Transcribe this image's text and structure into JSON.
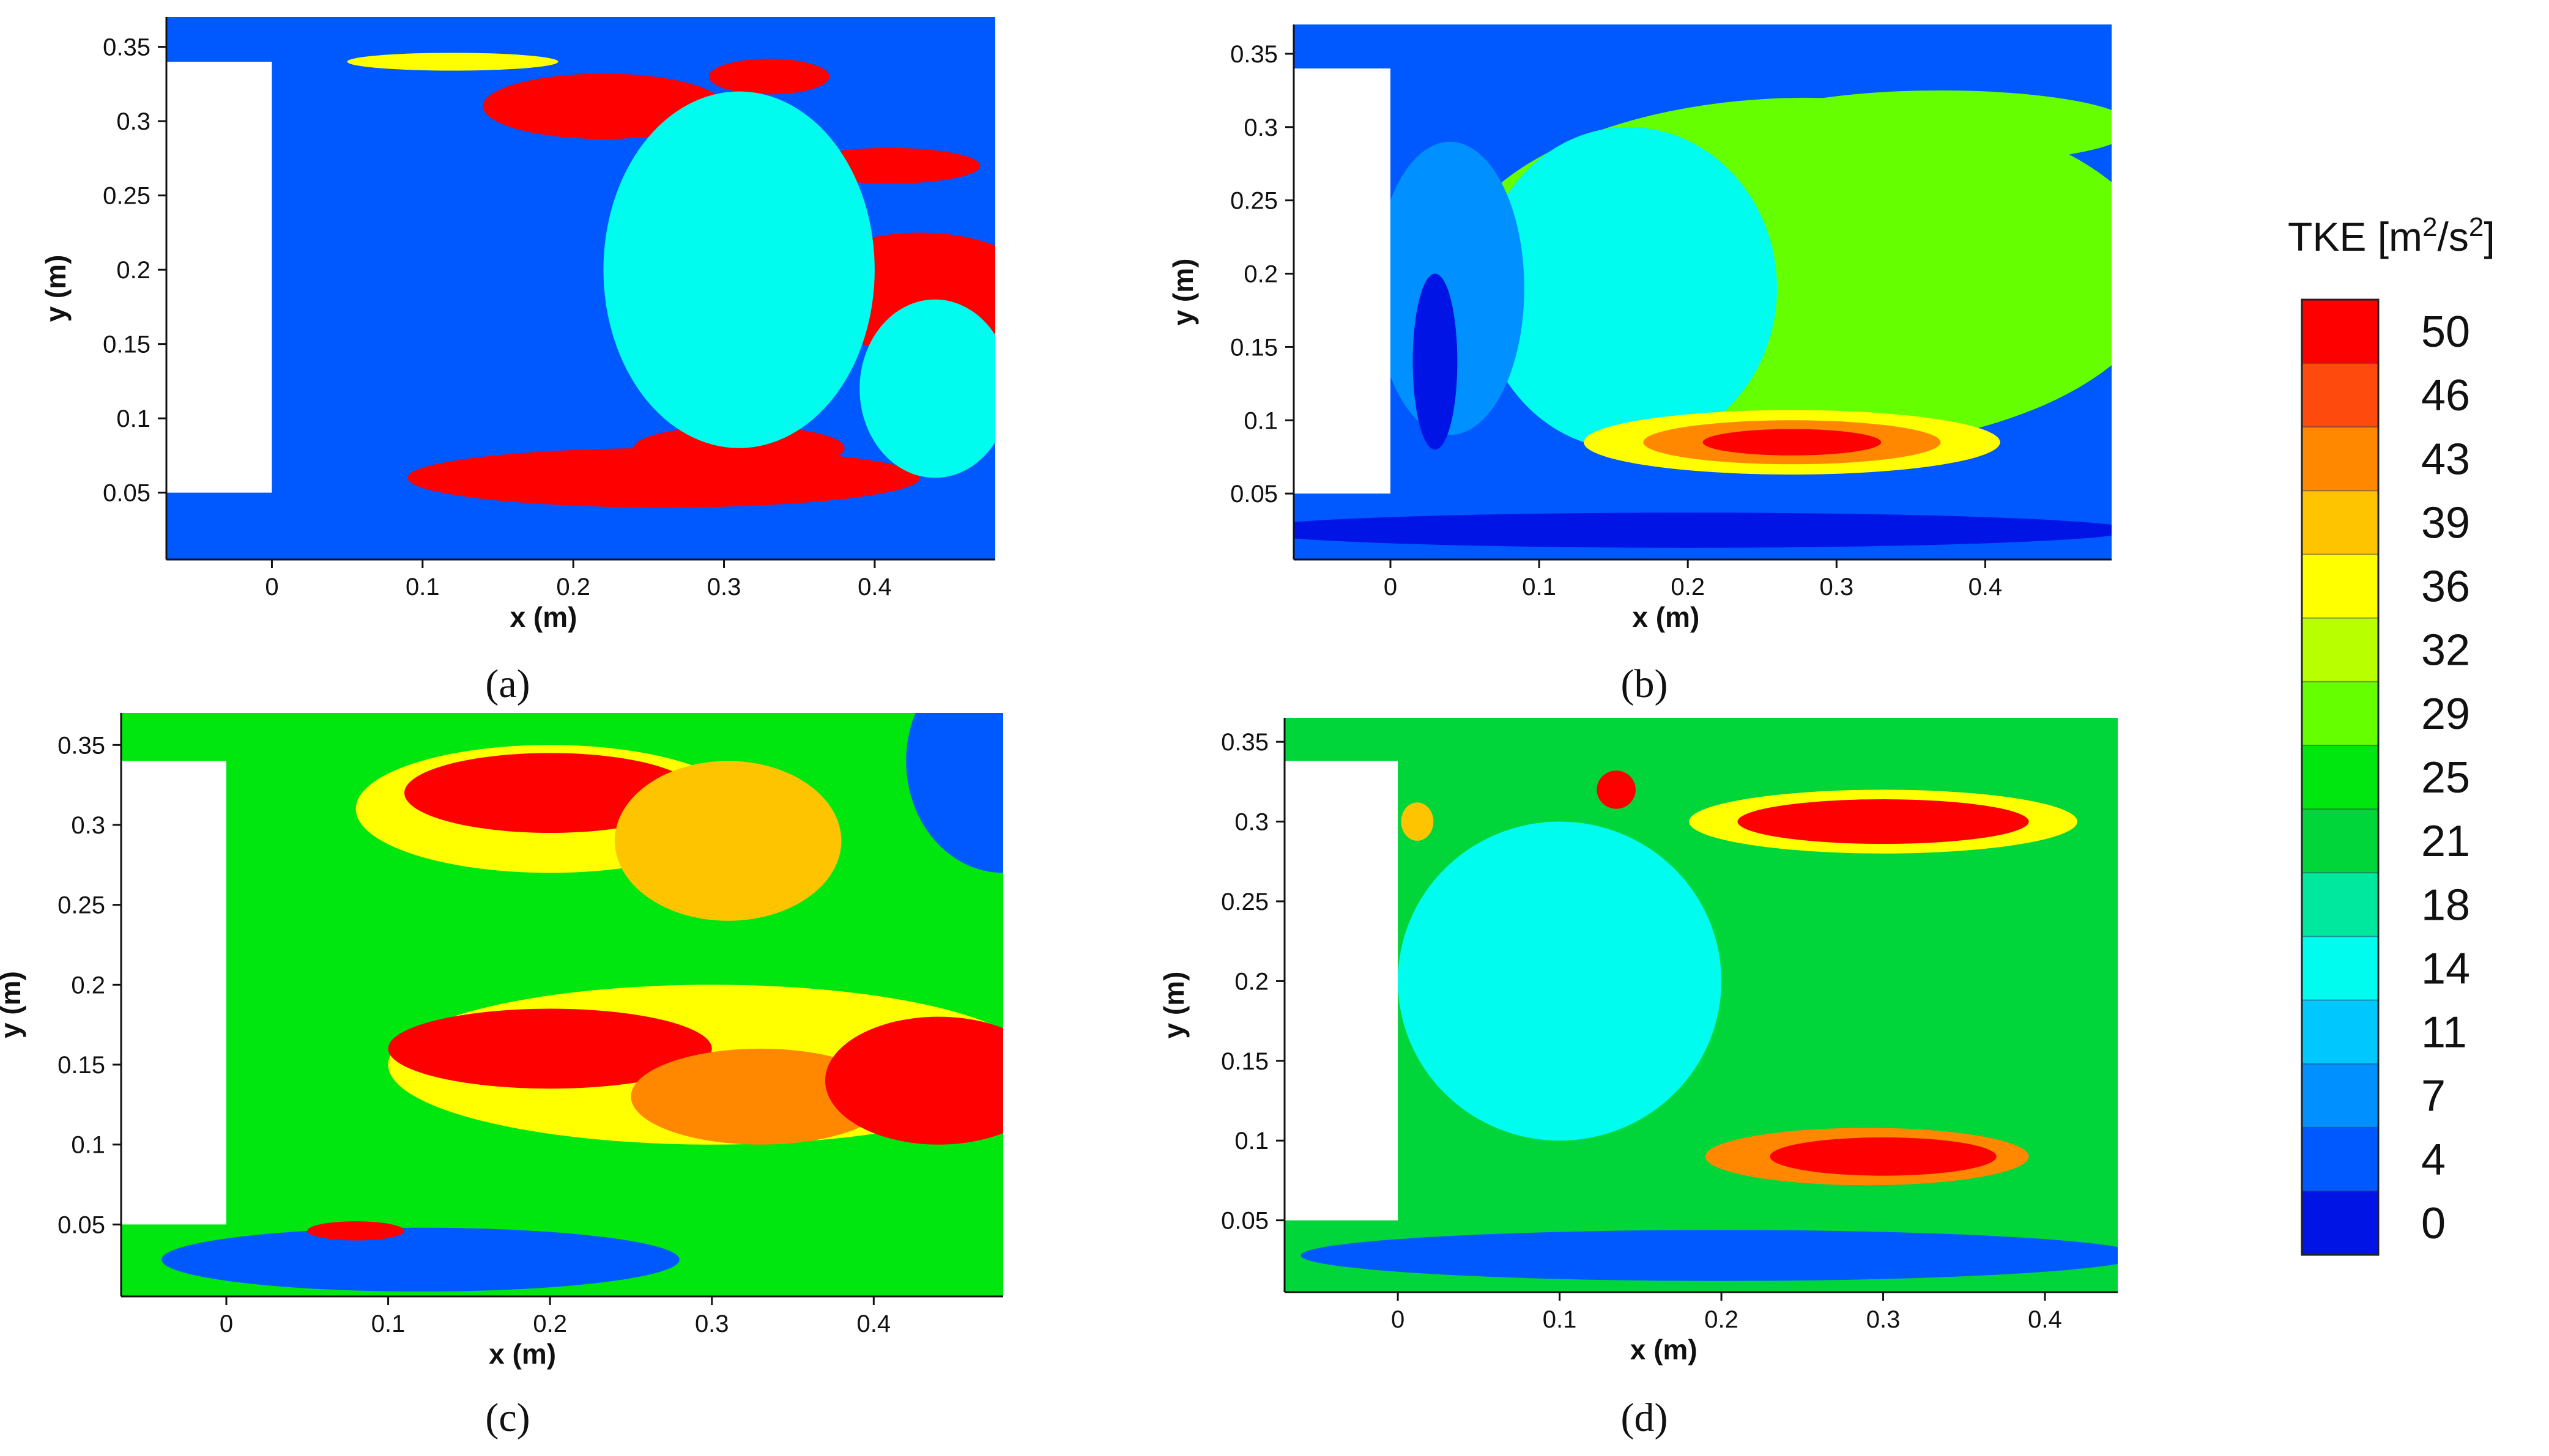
{
  "chart_data": {
    "type": "heatmap",
    "description_free": true,
    "colorbar": {
      "title_prefix": "TKE [m",
      "title_sup1": "2",
      "title_mid": "/s",
      "title_sup2": "2",
      "title_suffix": "]",
      "levels": [
        "50",
        "46",
        "43",
        "39",
        "36",
        "32",
        "29",
        "25",
        "21",
        "18",
        "14",
        "11",
        "7",
        "4",
        "0"
      ],
      "level_values": [
        50,
        46,
        43,
        39,
        36,
        32,
        29,
        25,
        21,
        18,
        14,
        11,
        7,
        4,
        0
      ],
      "colors": [
        "#ff0000",
        "#ff4a0e",
        "#ff8800",
        "#ffc400",
        "#ffff00",
        "#b8ff00",
        "#66ff00",
        "#00e60f",
        "#00d53a",
        "#00e79e",
        "#00fcee",
        "#00c8ff",
        "#0090ff",
        "#0058ff",
        "#0014e6"
      ]
    },
    "panels": [
      {
        "id": "a",
        "caption": "(a)",
        "xlabel": "x (m)",
        "ylabel": "y (m)",
        "xlim": [
          -0.07,
          0.48
        ],
        "ylim": [
          0.005,
          0.37
        ],
        "xticks": [
          "0",
          "0.1",
          "0.2",
          "0.3",
          "0.4"
        ],
        "xtick_values": [
          0,
          0.1,
          0.2,
          0.3,
          0.4
        ],
        "yticks": [
          "0.05",
          "0.1",
          "0.15",
          "0.2",
          "0.25",
          "0.3",
          "0.35"
        ],
        "ytick_values": [
          0.05,
          0.1,
          0.15,
          0.2,
          0.25,
          0.3,
          0.35
        ],
        "background_level": 4,
        "obstacle": {
          "x": [
            -0.07,
            0.0
          ],
          "y": [
            0.05,
            0.34
          ]
        },
        "blobs": [
          {
            "x": 0.22,
            "y": 0.31,
            "rx": 0.08,
            "ry": 0.022,
            "level": 50
          },
          {
            "x": 0.12,
            "y": 0.34,
            "rx": 0.07,
            "ry": 0.006,
            "level": 36
          },
          {
            "x": 0.33,
            "y": 0.33,
            "rx": 0.04,
            "ry": 0.012,
            "level": 50
          },
          {
            "x": 0.41,
            "y": 0.27,
            "rx": 0.06,
            "ry": 0.012,
            "level": 50
          },
          {
            "x": 0.43,
            "y": 0.185,
            "rx": 0.08,
            "ry": 0.04,
            "level": 50
          },
          {
            "x": 0.29,
            "y": 0.23,
            "rx": 0.05,
            "ry": 0.012,
            "level": 50
          },
          {
            "x": 0.26,
            "y": 0.06,
            "rx": 0.17,
            "ry": 0.02,
            "level": 50
          },
          {
            "x": 0.31,
            "y": 0.08,
            "rx": 0.07,
            "ry": 0.015,
            "level": 50
          },
          {
            "x": 0.31,
            "y": 0.2,
            "rx": 0.09,
            "ry": 0.12,
            "level": 14
          },
          {
            "x": 0.44,
            "y": 0.12,
            "rx": 0.05,
            "ry": 0.06,
            "level": 14
          }
        ]
      },
      {
        "id": "b",
        "caption": "(b)",
        "xlabel": "x (m)",
        "ylabel": "y (m)",
        "xlim": [
          -0.065,
          0.485
        ],
        "ylim": [
          0.005,
          0.37
        ],
        "xticks": [
          "0",
          "0.1",
          "0.2",
          "0.3",
          "0.4"
        ],
        "xtick_values": [
          0,
          0.1,
          0.2,
          0.3,
          0.4
        ],
        "yticks": [
          "0.05",
          "0.1",
          "0.15",
          "0.2",
          "0.25",
          "0.3",
          "0.35"
        ],
        "ytick_values": [
          0.05,
          0.1,
          0.15,
          0.2,
          0.25,
          0.3,
          0.35
        ],
        "background_level": 4,
        "obstacle": {
          "x": [
            -0.065,
            0.0
          ],
          "y": [
            0.05,
            0.34
          ]
        },
        "blobs": [
          {
            "x": 0.28,
            "y": 0.2,
            "rx": 0.24,
            "ry": 0.12,
            "level": 29
          },
          {
            "x": 0.16,
            "y": 0.19,
            "rx": 0.1,
            "ry": 0.11,
            "level": 14
          },
          {
            "x": 0.04,
            "y": 0.19,
            "rx": 0.05,
            "ry": 0.1,
            "level": 7
          },
          {
            "x": 0.03,
            "y": 0.14,
            "rx": 0.015,
            "ry": 0.06,
            "level": 0
          },
          {
            "x": 0.27,
            "y": 0.085,
            "rx": 0.14,
            "ry": 0.022,
            "level": 36
          },
          {
            "x": 0.27,
            "y": 0.085,
            "rx": 0.1,
            "ry": 0.015,
            "level": 43
          },
          {
            "x": 0.27,
            "y": 0.085,
            "rx": 0.06,
            "ry": 0.009,
            "level": 50
          },
          {
            "x": 0.37,
            "y": 0.3,
            "rx": 0.13,
            "ry": 0.025,
            "level": 29
          },
          {
            "x": 0.2,
            "y": 0.025,
            "rx": 0.3,
            "ry": 0.012,
            "level": 0
          }
        ]
      },
      {
        "id": "c",
        "caption": "(c)",
        "xlabel": "x (m)",
        "ylabel": "y (m)",
        "xlim": [
          -0.065,
          0.48
        ],
        "ylim": [
          0.005,
          0.37
        ],
        "xticks": [
          "0",
          "0.1",
          "0.2",
          "0.3",
          "0.4"
        ],
        "xtick_values": [
          0,
          0.1,
          0.2,
          0.3,
          0.4
        ],
        "yticks": [
          "0.05",
          "0.1",
          "0.15",
          "0.2",
          "0.25",
          "0.3",
          "0.35"
        ],
        "ytick_values": [
          0.05,
          0.1,
          0.15,
          0.2,
          0.25,
          0.3,
          0.35
        ],
        "background_level": 25,
        "obstacle": {
          "x": [
            -0.065,
            0.0
          ],
          "y": [
            0.05,
            0.34
          ]
        },
        "blobs": [
          {
            "x": 0.2,
            "y": 0.31,
            "rx": 0.12,
            "ry": 0.04,
            "level": 36
          },
          {
            "x": 0.2,
            "y": 0.32,
            "rx": 0.09,
            "ry": 0.025,
            "level": 50
          },
          {
            "x": 0.31,
            "y": 0.29,
            "rx": 0.07,
            "ry": 0.05,
            "level": 39
          },
          {
            "x": 0.3,
            "y": 0.15,
            "rx": 0.2,
            "ry": 0.05,
            "level": 36
          },
          {
            "x": 0.2,
            "y": 0.16,
            "rx": 0.1,
            "ry": 0.025,
            "level": 50
          },
          {
            "x": 0.33,
            "y": 0.13,
            "rx": 0.08,
            "ry": 0.03,
            "level": 43
          },
          {
            "x": 0.44,
            "y": 0.14,
            "rx": 0.07,
            "ry": 0.04,
            "level": 50
          },
          {
            "x": 0.12,
            "y": 0.028,
            "rx": 0.16,
            "ry": 0.02,
            "level": 4
          },
          {
            "x": 0.48,
            "y": 0.34,
            "rx": 0.06,
            "ry": 0.07,
            "level": 4
          },
          {
            "x": 0.08,
            "y": 0.046,
            "rx": 0.03,
            "ry": 0.006,
            "level": 50
          }
        ]
      },
      {
        "id": "d",
        "caption": "(d)",
        "xlabel": "x (m)",
        "ylabel": "y (m)",
        "xlim": [
          -0.07,
          0.445
        ],
        "ylim": [
          0.005,
          0.365
        ],
        "xticks": [
          "0",
          "0.1",
          "0.2",
          "0.3",
          "0.4"
        ],
        "xtick_values": [
          0,
          0.1,
          0.2,
          0.3,
          0.4
        ],
        "yticks": [
          "0.05",
          "0.1",
          "0.15",
          "0.2",
          "0.25",
          "0.3",
          "0.35"
        ],
        "ytick_values": [
          0.05,
          0.1,
          0.15,
          0.2,
          0.25,
          0.3,
          0.35
        ],
        "background_level": 21,
        "obstacle": {
          "x": [
            -0.07,
            0.0
          ],
          "y": [
            0.05,
            0.338
          ]
        },
        "blobs": [
          {
            "x": 0.1,
            "y": 0.2,
            "rx": 0.1,
            "ry": 0.1,
            "level": 14
          },
          {
            "x": 0.3,
            "y": 0.3,
            "rx": 0.12,
            "ry": 0.02,
            "level": 36
          },
          {
            "x": 0.3,
            "y": 0.3,
            "rx": 0.09,
            "ry": 0.014,
            "level": 50
          },
          {
            "x": 0.135,
            "y": 0.32,
            "rx": 0.012,
            "ry": 0.012,
            "level": 50
          },
          {
            "x": 0.29,
            "y": 0.09,
            "rx": 0.1,
            "ry": 0.018,
            "level": 43
          },
          {
            "x": 0.3,
            "y": 0.09,
            "rx": 0.07,
            "ry": 0.012,
            "level": 50
          },
          {
            "x": 0.2,
            "y": 0.028,
            "rx": 0.26,
            "ry": 0.016,
            "level": 4
          },
          {
            "x": 0.012,
            "y": 0.3,
            "rx": 0.01,
            "ry": 0.012,
            "level": 39
          }
        ]
      }
    ]
  }
}
